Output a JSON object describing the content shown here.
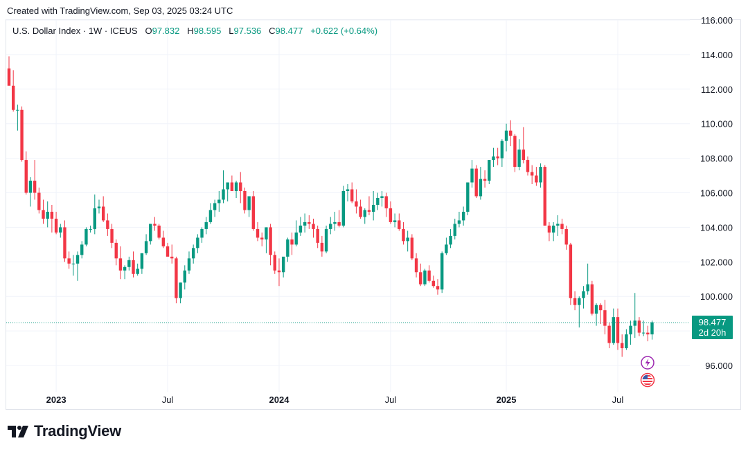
{
  "header": {
    "created_text": "Created with TradingView.com, Sep 03, 2025 03:24 UTC"
  },
  "legend": {
    "symbol": "U.S. Dollar Index · 1W · ICEUS",
    "o_label": "O",
    "o_value": "97.832",
    "h_label": "H",
    "h_value": "98.595",
    "l_label": "L",
    "l_value": "97.536",
    "c_label": "C",
    "c_value": "98.477",
    "change": "+0.622 (+0.64%)"
  },
  "price_tag": {
    "price": "98.477",
    "countdown": "2d 20h"
  },
  "footer": {
    "logo_text": "TradingView"
  },
  "colors": {
    "up": "#089981",
    "down": "#f23645",
    "grid": "#f0f3fa",
    "axis_text": "#131722",
    "last_line": "#089981"
  },
  "chart_data": {
    "type": "candlestick",
    "title": "U.S. Dollar Index · 1W · ICEUS",
    "interval": "1W",
    "ylim": [
      94.85,
      116.2
    ],
    "y_ticks": [
      96.0,
      98.0,
      100.0,
      102.0,
      104.0,
      106.0,
      108.0,
      110.0,
      112.0,
      114.0,
      116.0
    ],
    "y_tick_labels": [
      "96.000",
      "98.000",
      "100.000",
      "102.000",
      "104.000",
      "106.000",
      "108.000",
      "110.000",
      "112.000",
      "114.000",
      "116.000"
    ],
    "x_ticks": [
      {
        "index": 11,
        "label": "2023",
        "bold": true
      },
      {
        "index": 37,
        "label": "Jul",
        "bold": false
      },
      {
        "index": 63,
        "label": "2024",
        "bold": true
      },
      {
        "index": 89,
        "label": "Jul",
        "bold": false
      },
      {
        "index": 116,
        "label": "2025",
        "bold": true
      },
      {
        "index": 142,
        "label": "Jul",
        "bold": false
      }
    ],
    "last_price": 98.477,
    "candles": [
      [
        113.2,
        113.9,
        112.3,
        112.2
      ],
      [
        112.2,
        113.1,
        110.7,
        110.8
      ],
      [
        110.8,
        111.1,
        109.6,
        110.8
      ],
      [
        110.8,
        111.0,
        107.8,
        107.9
      ],
      [
        107.9,
        108.4,
        105.9,
        106.0
      ],
      [
        106.0,
        106.9,
        105.2,
        106.7
      ],
      [
        106.7,
        107.9,
        105.6,
        106.0
      ],
      [
        106.0,
        106.3,
        104.8,
        105.0
      ],
      [
        105.0,
        105.6,
        104.2,
        104.5
      ],
      [
        104.5,
        105.5,
        104.0,
        104.9
      ],
      [
        104.9,
        105.3,
        103.7,
        104.5
      ],
      [
        104.5,
        104.9,
        103.6,
        103.7
      ],
      [
        103.7,
        104.2,
        103.4,
        104.0
      ],
      [
        104.0,
        104.4,
        102.0,
        102.2
      ],
      [
        102.2,
        102.6,
        101.6,
        101.9
      ],
      [
        101.9,
        102.4,
        101.2,
        101.9
      ],
      [
        101.9,
        102.6,
        100.9,
        102.4
      ],
      [
        102.4,
        103.2,
        102.2,
        103.0
      ],
      [
        103.0,
        104.0,
        102.9,
        103.9
      ],
      [
        103.9,
        104.1,
        103.7,
        103.9
      ],
      [
        103.9,
        105.9,
        103.6,
        105.1
      ],
      [
        105.1,
        105.6,
        104.8,
        105.2
      ],
      [
        105.2,
        105.8,
        104.3,
        104.4
      ],
      [
        104.4,
        104.8,
        103.5,
        103.9
      ],
      [
        103.9,
        104.2,
        102.8,
        103.1
      ],
      [
        103.1,
        103.3,
        101.8,
        102.2
      ],
      [
        102.2,
        102.9,
        101.0,
        101.5
      ],
      [
        101.5,
        101.8,
        101.0,
        101.7
      ],
      [
        101.7,
        102.3,
        101.5,
        102.1
      ],
      [
        102.1,
        102.6,
        101.1,
        101.3
      ],
      [
        101.3,
        101.9,
        101.2,
        101.6
      ],
      [
        101.6,
        102.5,
        101.3,
        102.5
      ],
      [
        102.5,
        103.6,
        102.4,
        103.2
      ],
      [
        103.2,
        104.2,
        103.0,
        104.2
      ],
      [
        104.2,
        104.6,
        103.8,
        104.1
      ],
      [
        104.1,
        104.2,
        103.3,
        103.4
      ],
      [
        103.4,
        103.8,
        102.8,
        102.9
      ],
      [
        102.9,
        103.1,
        102.4,
        102.3
      ],
      [
        102.3,
        103.0,
        101.9,
        102.2
      ],
      [
        102.2,
        102.3,
        99.6,
        99.9
      ],
      [
        99.9,
        100.8,
        99.6,
        100.8
      ],
      [
        100.8,
        101.8,
        100.4,
        101.5
      ],
      [
        101.5,
        102.6,
        101.3,
        102.2
      ],
      [
        102.2,
        103.0,
        101.9,
        102.8
      ],
      [
        102.8,
        103.6,
        102.5,
        103.4
      ],
      [
        103.4,
        104.0,
        103.1,
        103.9
      ],
      [
        103.9,
        104.6,
        103.6,
        104.3
      ],
      [
        104.3,
        105.4,
        104.2,
        105.0
      ],
      [
        105.0,
        105.6,
        104.6,
        105.4
      ],
      [
        105.4,
        106.1,
        104.9,
        105.6
      ],
      [
        105.6,
        107.3,
        105.4,
        106.2
      ],
      [
        106.2,
        106.6,
        105.5,
        106.6
      ],
      [
        106.6,
        107.0,
        106.1,
        106.1
      ],
      [
        106.1,
        106.7,
        105.7,
        106.6
      ],
      [
        106.6,
        107.2,
        105.4,
        106.1
      ],
      [
        106.1,
        106.3,
        104.8,
        105.0
      ],
      [
        105.0,
        105.7,
        104.6,
        105.8
      ],
      [
        105.8,
        106.1,
        103.8,
        103.9
      ],
      [
        103.9,
        104.3,
        103.2,
        103.4
      ],
      [
        103.4,
        103.7,
        102.9,
        103.3
      ],
      [
        103.3,
        104.0,
        102.5,
        104.0
      ],
      [
        104.0,
        104.2,
        101.8,
        102.4
      ],
      [
        102.4,
        102.6,
        101.3,
        101.5
      ],
      [
        101.5,
        102.2,
        100.6,
        101.4
      ],
      [
        101.4,
        102.1,
        101.1,
        102.3
      ],
      [
        102.3,
        103.4,
        102.0,
        103.3
      ],
      [
        103.3,
        103.7,
        102.4,
        103.0
      ],
      [
        103.0,
        104.4,
        102.9,
        103.7
      ],
      [
        103.7,
        104.6,
        103.5,
        104.1
      ],
      [
        104.1,
        104.8,
        103.7,
        104.3
      ],
      [
        104.3,
        104.7,
        103.9,
        104.2
      ],
      [
        104.2,
        104.5,
        103.4,
        103.9
      ],
      [
        103.9,
        104.1,
        102.8,
        103.1
      ],
      [
        103.1,
        103.5,
        102.3,
        102.6
      ],
      [
        102.6,
        104.1,
        102.5,
        103.9
      ],
      [
        103.9,
        104.6,
        103.6,
        104.2
      ],
      [
        104.2,
        104.9,
        103.8,
        104.3
      ],
      [
        104.3,
        105.0,
        104.0,
        104.1
      ],
      [
        104.1,
        106.4,
        104.0,
        106.1
      ],
      [
        106.1,
        106.5,
        105.5,
        106.2
      ],
      [
        106.2,
        106.6,
        105.4,
        105.5
      ],
      [
        105.5,
        106.2,
        104.8,
        105.2
      ],
      [
        105.2,
        105.6,
        104.5,
        104.6
      ],
      [
        104.6,
        105.1,
        104.2,
        105.0
      ],
      [
        105.0,
        105.8,
        104.7,
        104.9
      ],
      [
        104.9,
        106.1,
        104.4,
        105.3
      ],
      [
        105.3,
        106.0,
        105.0,
        105.7
      ],
      [
        105.7,
        106.1,
        105.2,
        105.8
      ],
      [
        105.8,
        106.0,
        104.6,
        105.1
      ],
      [
        105.1,
        105.5,
        104.2,
        104.3
      ],
      [
        104.3,
        104.8,
        104.0,
        104.4
      ],
      [
        104.4,
        104.8,
        103.8,
        103.9
      ],
      [
        103.9,
        104.3,
        103.0,
        103.2
      ],
      [
        103.2,
        103.8,
        102.6,
        103.4
      ],
      [
        103.4,
        103.6,
        102.1,
        102.2
      ],
      [
        102.2,
        102.5,
        101.1,
        101.4
      ],
      [
        101.4,
        101.9,
        100.6,
        100.7
      ],
      [
        100.7,
        101.6,
        100.6,
        101.5
      ],
      [
        101.5,
        101.8,
        100.8,
        100.9
      ],
      [
        100.9,
        101.2,
        100.5,
        100.6
      ],
      [
        100.6,
        101.0,
        100.1,
        100.4
      ],
      [
        100.4,
        102.6,
        100.2,
        102.5
      ],
      [
        102.5,
        103.4,
        102.4,
        103.0
      ],
      [
        103.0,
        103.9,
        102.8,
        103.5
      ],
      [
        103.5,
        104.5,
        103.3,
        104.2
      ],
      [
        104.2,
        104.9,
        104.0,
        104.4
      ],
      [
        104.4,
        105.2,
        104.1,
        104.9
      ],
      [
        104.9,
        106.6,
        104.7,
        106.6
      ],
      [
        106.6,
        107.9,
        106.3,
        107.4
      ],
      [
        107.4,
        107.6,
        105.7,
        105.8
      ],
      [
        105.8,
        107.5,
        105.6,
        106.8
      ],
      [
        106.8,
        107.3,
        106.3,
        106.7
      ],
      [
        106.7,
        107.9,
        106.5,
        107.9
      ],
      [
        107.9,
        108.6,
        107.5,
        108.1
      ],
      [
        108.1,
        108.6,
        107.6,
        108.0
      ],
      [
        108.0,
        109.1,
        107.5,
        109.0
      ],
      [
        109.0,
        110.0,
        108.4,
        109.6
      ],
      [
        109.6,
        110.2,
        108.7,
        109.3
      ],
      [
        109.3,
        109.4,
        107.2,
        107.5
      ],
      [
        107.5,
        109.1,
        107.3,
        108.5
      ],
      [
        108.5,
        109.8,
        107.7,
        107.9
      ],
      [
        107.9,
        108.1,
        107.0,
        107.2
      ],
      [
        107.2,
        107.6,
        106.5,
        107.0
      ],
      [
        107.0,
        107.5,
        106.4,
        106.6
      ],
      [
        106.6,
        107.7,
        106.3,
        107.5
      ],
      [
        107.5,
        107.6,
        104.1,
        104.1
      ],
      [
        104.1,
        104.3,
        103.2,
        103.7
      ],
      [
        103.7,
        104.3,
        103.2,
        104.1
      ],
      [
        104.1,
        104.7,
        103.5,
        104.2
      ],
      [
        104.2,
        104.5,
        103.6,
        103.9
      ],
      [
        103.9,
        104.1,
        102.7,
        103.0
      ],
      [
        103.0,
        103.1,
        99.5,
        99.9
      ],
      [
        99.9,
        100.3,
        99.2,
        99.5
      ],
      [
        99.5,
        100.0,
        98.2,
        99.9
      ],
      [
        99.9,
        100.6,
        99.3,
        100.3
      ],
      [
        100.3,
        101.9,
        100.1,
        100.7
      ],
      [
        100.7,
        100.9,
        98.9,
        99.0
      ],
      [
        99.0,
        99.6,
        98.3,
        99.5
      ],
      [
        99.5,
        99.6,
        98.4,
        99.2
      ],
      [
        99.2,
        99.8,
        97.8,
        98.3
      ],
      [
        98.3,
        98.5,
        97.0,
        97.3
      ],
      [
        97.3,
        99.3,
        97.2,
        98.8
      ],
      [
        98.8,
        99.3,
        96.9,
        97.3
      ],
      [
        97.3,
        97.8,
        96.5,
        97.0
      ],
      [
        97.0,
        98.1,
        96.9,
        97.8
      ],
      [
        97.8,
        98.6,
        97.2,
        98.3
      ],
      [
        98.3,
        100.2,
        97.6,
        98.6
      ],
      [
        98.6,
        98.8,
        97.7,
        97.9
      ],
      [
        97.9,
        98.6,
        97.7,
        97.9
      ],
      [
        97.9,
        98.3,
        97.4,
        97.8
      ],
      [
        97.8,
        98.6,
        97.5,
        98.5
      ]
    ]
  }
}
